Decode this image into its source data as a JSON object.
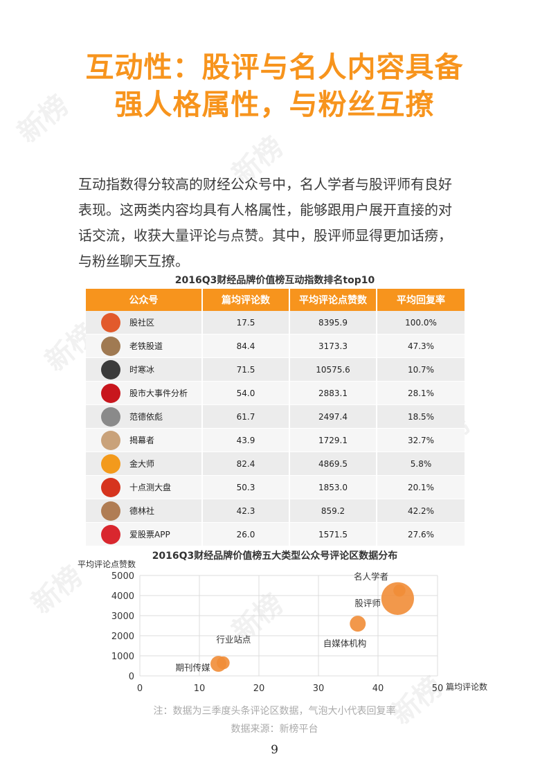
{
  "title": {
    "line1": "互动性：股评与名人内容具备",
    "line2": "强人格属性，与粉丝互撩"
  },
  "body": {
    "line1": "互动指数得分较高的财经公众号中，名人学者与股评师有良好",
    "line2": "表现。这两类内容均具有人格属性，能够跟用户展开直接的对",
    "line3": "话交流，收获大量评论与点赞。其中，股评师显得更加话痨，",
    "line4": "与粉丝聊天互撩。"
  },
  "table": {
    "title": "2016Q3财经品牌价值榜互动指数排名top10",
    "headers": [
      "公众号",
      "篇均评论数",
      "平均评论点赞数",
      "平均回复率"
    ],
    "rows": [
      {
        "name": "股社区",
        "comments": "17.5",
        "likes": "8395.9",
        "reply": "100.0%",
        "avatar_color": "#e25a2c"
      },
      {
        "name": "老铁股道",
        "comments": "84.4",
        "likes": "3173.3",
        "reply": "47.3%",
        "avatar_color": "#a07a52"
      },
      {
        "name": "时寒冰",
        "comments": "71.5",
        "likes": "10575.6",
        "reply": "10.7%",
        "avatar_color": "#3b3b3b"
      },
      {
        "name": "股市大事件分析",
        "comments": "54.0",
        "likes": "2883.1",
        "reply": "28.1%",
        "avatar_color": "#c8161d"
      },
      {
        "name": "范德依彪",
        "comments": "61.7",
        "likes": "2497.4",
        "reply": "18.5%",
        "avatar_color": "#8a8a8a"
      },
      {
        "name": "揭幕者",
        "comments": "43.9",
        "likes": "1729.1",
        "reply": "32.7%",
        "avatar_color": "#c9a27a"
      },
      {
        "name": "金大师",
        "comments": "82.4",
        "likes": "4869.5",
        "reply": "5.8%",
        "avatar_color": "#f39a1c"
      },
      {
        "name": "十点测大盘",
        "comments": "50.3",
        "likes": "1853.0",
        "reply": "20.1%",
        "avatar_color": "#d6341e"
      },
      {
        "name": "德林社",
        "comments": "42.3",
        "likes": "859.2",
        "reply": "42.2%",
        "avatar_color": "#b07d54"
      },
      {
        "name": "爱股票APP",
        "comments": "26.0",
        "likes": "1571.5",
        "reply": "27.6%",
        "avatar_color": "#d9272e"
      }
    ]
  },
  "chart_data": {
    "type": "scatter",
    "title": "2016Q3财经品牌价值榜五大类型公众号评论区数据分布",
    "xlabel": "篇均评论数",
    "ylabel": "平均评论点赞数",
    "xlim": [
      0,
      50
    ],
    "ylim": [
      0,
      5000
    ],
    "xticks": [
      0,
      10,
      20,
      30,
      40,
      50
    ],
    "yticks": [
      0,
      1000,
      2000,
      3000,
      4000,
      5000
    ],
    "grid": true,
    "bubble_color": "#f18d37",
    "points": [
      {
        "label": "期刊传媒",
        "x": 13.2,
        "y": 600,
        "size": 0.1
      },
      {
        "label": "行业站点",
        "x": 14.0,
        "y": 650,
        "size": 0.06
      },
      {
        "label": "自媒体机构",
        "x": 36.6,
        "y": 2600,
        "size": 0.1
      },
      {
        "label": "股评师",
        "x": 43.3,
        "y": 3850,
        "size": 0.32
      },
      {
        "label": "名人学者",
        "x": 43.6,
        "y": 4250,
        "size": 0.05
      }
    ]
  },
  "note": "注：数据为三季度头条评论区数据，气泡大小代表回复率",
  "source": "数据来源：新榜平台",
  "page_number": "9"
}
